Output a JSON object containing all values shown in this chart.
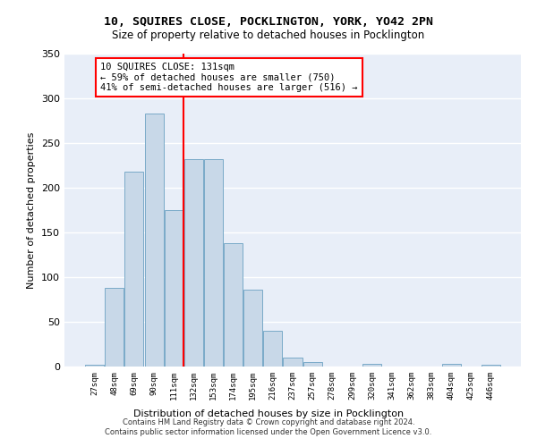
{
  "title_line1": "10, SQUIRES CLOSE, POCKLINGTON, YORK, YO42 2PN",
  "title_line2": "Size of property relative to detached houses in Pocklington",
  "xlabel": "Distribution of detached houses by size in Pocklington",
  "ylabel": "Number of detached properties",
  "bar_color": "#c8d8e8",
  "bar_edgecolor": "#7aaac8",
  "background_color": "#e8eef8",
  "grid_color": "#ffffff",
  "categories": [
    "27sqm",
    "48sqm",
    "69sqm",
    "90sqm",
    "111sqm",
    "132sqm",
    "153sqm",
    "174sqm",
    "195sqm",
    "216sqm",
    "237sqm",
    "257sqm",
    "278sqm",
    "299sqm",
    "320sqm",
    "341sqm",
    "362sqm",
    "383sqm",
    "404sqm",
    "425sqm",
    "446sqm"
  ],
  "values": [
    2,
    88,
    218,
    283,
    175,
    232,
    232,
    138,
    86,
    40,
    10,
    5,
    0,
    0,
    3,
    0,
    0,
    0,
    3,
    0,
    2
  ],
  "red_line_x": 4.5,
  "annotation_text": "10 SQUIRES CLOSE: 131sqm\n← 59% of detached houses are smaller (750)\n41% of semi-detached houses are larger (516) →",
  "ylim": [
    0,
    350
  ],
  "yticks": [
    0,
    50,
    100,
    150,
    200,
    250,
    300,
    350
  ],
  "footer_line1": "Contains HM Land Registry data © Crown copyright and database right 2024.",
  "footer_line2": "Contains public sector information licensed under the Open Government Licence v3.0."
}
